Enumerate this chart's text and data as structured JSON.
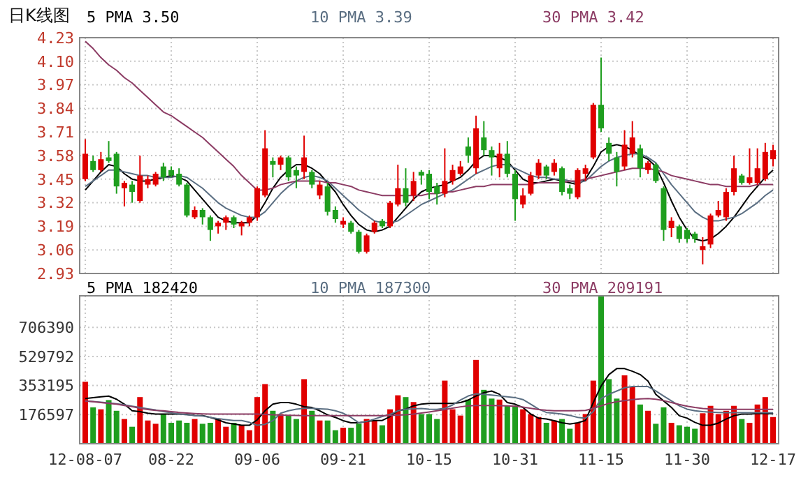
{
  "chart_data": [
    {
      "type": "candlestick",
      "title": "日K线图",
      "legend": "top",
      "grid": true,
      "tick_labels": "y",
      "categories": [
        null,
        null,
        null,
        null,
        null,
        null,
        null,
        null,
        null,
        null,
        null,
        null,
        null,
        null,
        null,
        null,
        null,
        null,
        null,
        null,
        null,
        null,
        null,
        null,
        null,
        null,
        null,
        null,
        null,
        null,
        null,
        null,
        null,
        null,
        null,
        null,
        null,
        null,
        null,
        null,
        null,
        null,
        null,
        null,
        null,
        null,
        null,
        null,
        null,
        null,
        null,
        null,
        null,
        null,
        null,
        null,
        null,
        null,
        null,
        null,
        null,
        null,
        null,
        null,
        null,
        null,
        null,
        null,
        null,
        null,
        null,
        null,
        null,
        null,
        null,
        null,
        null,
        null,
        null,
        null,
        null,
        null,
        null,
        null,
        null,
        null,
        null,
        null,
        null
      ],
      "ylim": [
        2.93,
        4.23
      ],
      "yticks": [
        2.93,
        3.06,
        3.19,
        3.32,
        3.45,
        3.58,
        3.71,
        3.84,
        3.97,
        {
          "value": 4.1,
          "label": "4.10"
        },
        4.23
      ],
      "colors": [
        "#e00000",
        "#1e9e1e",
        "#e00000",
        "#1e9e1e",
        "#1e9e1e",
        "#e00000",
        "#1e9e1e",
        "#e00000",
        "#e00000",
        "#e00000",
        "#1e9e1e",
        "#1e9e1e",
        "#1e9e1e",
        "#1e9e1e",
        "#e00000",
        "#1e9e1e",
        "#1e9e1e",
        "#e00000",
        "#e00000",
        "#1e9e1e",
        "#e00000",
        "#e00000",
        "#e00000",
        "#e00000",
        "#1e9e1e",
        "#e00000",
        "#1e9e1e",
        "#1e9e1e",
        "#e00000",
        "#1e9e1e",
        "#e00000",
        "#1e9e1e",
        "#1e9e1e",
        "#e00000",
        "#1e9e1e",
        "#1e9e1e",
        "#e00000",
        "#e00000",
        "#1e9e1e",
        "#e00000",
        "#e00000",
        "#1e9e1e",
        "#e00000",
        "#1e9e1e",
        "#1e9e1e",
        "#1e9e1e",
        "#e00000",
        "#e00000",
        "#e00000",
        "#1e9e1e",
        "#e00000",
        "#1e9e1e",
        "#1e9e1e",
        "#e00000",
        "#1e9e1e",
        "#1e9e1e",
        "#e00000",
        "#e00000",
        "#e00000",
        "#1e9e1e",
        "#e00000",
        "#1e9e1e",
        "#1e9e1e",
        "#e00000",
        "#e00000",
        "#e00000",
        "#1e9e1e",
        "#1e9e1e",
        "#1e9e1e",
        "#e00000",
        "#e00000",
        "#1e9e1e",
        "#e00000",
        "#1e9e1e",
        "#1e9e1e",
        "#e00000",
        "#1e9e1e",
        "#1e9e1e",
        "#1e9e1e",
        "#e00000",
        "#e00000",
        "#e00000",
        "#e00000",
        "#e00000",
        "#1e9e1e",
        "#e00000",
        "#e00000",
        "#e00000",
        "#e00000"
      ],
      "ohlc": [
        [
          3.45,
          3.67,
          3.44,
          3.59
        ],
        [
          3.55,
          3.58,
          3.49,
          3.5
        ],
        [
          3.5,
          3.6,
          3.49,
          3.56
        ],
        [
          3.57,
          3.66,
          3.54,
          3.55
        ],
        [
          3.59,
          3.6,
          3.37,
          3.41
        ],
        [
          3.4,
          3.44,
          3.3,
          3.43
        ],
        [
          3.42,
          3.44,
          3.32,
          3.38
        ],
        [
          3.33,
          3.58,
          3.32,
          3.47
        ],
        [
          3.42,
          3.47,
          3.4,
          3.45
        ],
        [
          3.42,
          3.49,
          3.41,
          3.48
        ],
        [
          3.52,
          3.54,
          3.44,
          3.46
        ],
        [
          3.5,
          3.52,
          3.46,
          3.47
        ],
        [
          3.48,
          3.51,
          3.41,
          3.42
        ],
        [
          3.42,
          3.43,
          3.24,
          3.25
        ],
        [
          3.24,
          3.3,
          3.23,
          3.28
        ],
        [
          3.28,
          3.29,
          3.2,
          3.24
        ],
        [
          3.24,
          3.25,
          3.11,
          3.17
        ],
        [
          3.19,
          3.22,
          3.15,
          3.21
        ],
        [
          3.21,
          3.25,
          3.17,
          3.24
        ],
        [
          3.24,
          3.25,
          3.18,
          3.2
        ],
        [
          3.19,
          3.22,
          3.14,
          3.21
        ],
        [
          3.21,
          3.25,
          3.19,
          3.24
        ],
        [
          3.24,
          3.41,
          3.22,
          3.4
        ],
        [
          3.36,
          3.72,
          3.35,
          3.62
        ],
        [
          3.55,
          3.57,
          3.46,
          3.53
        ],
        [
          3.53,
          3.58,
          3.5,
          3.57
        ],
        [
          3.57,
          3.58,
          3.44,
          3.46
        ],
        [
          3.5,
          3.52,
          3.4,
          3.47
        ],
        [
          3.49,
          3.69,
          3.45,
          3.57
        ],
        [
          3.49,
          3.5,
          3.4,
          3.42
        ],
        [
          3.36,
          3.44,
          3.34,
          3.42
        ],
        [
          3.41,
          3.43,
          3.25,
          3.27
        ],
        [
          3.28,
          3.3,
          3.21,
          3.23
        ],
        [
          3.2,
          3.24,
          3.18,
          3.22
        ],
        [
          3.21,
          3.22,
          3.15,
          3.16
        ],
        [
          3.16,
          3.17,
          3.04,
          3.05
        ],
        [
          3.05,
          3.15,
          3.04,
          3.14
        ],
        [
          3.16,
          3.22,
          3.15,
          3.21
        ],
        [
          3.22,
          3.23,
          3.18,
          3.19
        ],
        [
          3.19,
          3.33,
          3.18,
          3.32
        ],
        [
          3.31,
          3.53,
          3.3,
          3.4
        ],
        [
          3.4,
          3.51,
          3.3,
          3.32
        ],
        [
          3.36,
          3.49,
          3.33,
          3.44
        ],
        [
          3.49,
          3.5,
          3.42,
          3.47
        ],
        [
          3.48,
          3.5,
          3.34,
          3.38
        ],
        [
          3.41,
          3.43,
          3.31,
          3.37
        ],
        [
          3.37,
          3.62,
          3.35,
          3.44
        ],
        [
          3.44,
          3.53,
          3.42,
          3.5
        ],
        [
          3.48,
          3.55,
          3.47,
          3.52
        ],
        [
          3.63,
          3.68,
          3.54,
          3.58
        ],
        [
          3.51,
          3.8,
          3.48,
          3.73
        ],
        [
          3.68,
          3.77,
          3.58,
          3.61
        ],
        [
          3.61,
          3.63,
          3.47,
          3.57
        ],
        [
          3.51,
          3.65,
          3.46,
          3.59
        ],
        [
          3.59,
          3.66,
          3.46,
          3.48
        ],
        [
          3.48,
          3.5,
          3.22,
          3.34
        ],
        [
          3.31,
          3.4,
          3.29,
          3.36
        ],
        [
          3.37,
          3.49,
          3.36,
          3.47
        ],
        [
          3.47,
          3.56,
          3.45,
          3.54
        ],
        [
          3.52,
          3.53,
          3.45,
          3.47
        ],
        [
          3.49,
          3.56,
          3.47,
          3.54
        ],
        [
          3.51,
          3.52,
          3.36,
          3.38
        ],
        [
          3.4,
          3.42,
          3.34,
          3.37
        ],
        [
          3.35,
          3.51,
          3.34,
          3.5
        ],
        [
          3.48,
          3.53,
          3.44,
          3.51
        ],
        [
          3.57,
          3.87,
          3.56,
          3.86
        ],
        [
          3.86,
          4.12,
          3.71,
          3.73
        ],
        [
          3.65,
          3.68,
          3.55,
          3.59
        ],
        [
          3.57,
          3.6,
          3.41,
          3.49
        ],
        [
          3.52,
          3.72,
          3.5,
          3.64
        ],
        [
          3.59,
          3.77,
          3.57,
          3.68
        ],
        [
          3.62,
          3.64,
          3.46,
          3.51
        ],
        [
          3.5,
          3.55,
          3.48,
          3.54
        ],
        [
          3.53,
          3.54,
          3.43,
          3.44
        ],
        [
          3.4,
          3.41,
          3.11,
          3.17
        ],
        [
          3.18,
          3.24,
          3.13,
          3.22
        ],
        [
          3.19,
          3.2,
          3.1,
          3.12
        ],
        [
          3.17,
          3.18,
          3.1,
          3.12
        ],
        [
          3.15,
          3.16,
          3.1,
          3.12
        ],
        [
          3.06,
          3.13,
          2.98,
          3.08
        ],
        [
          3.09,
          3.26,
          3.07,
          3.25
        ],
        [
          3.25,
          3.33,
          3.24,
          3.28
        ],
        [
          3.24,
          3.4,
          3.22,
          3.38
        ],
        [
          3.38,
          3.58,
          3.36,
          3.51
        ],
        [
          3.47,
          3.48,
          3.42,
          3.43
        ],
        [
          3.43,
          3.62,
          3.42,
          3.46
        ],
        [
          3.43,
          3.62,
          3.42,
          3.51
        ],
        [
          3.45,
          3.65,
          3.44,
          3.6
        ],
        [
          3.56,
          3.64,
          3.52,
          3.61
        ]
      ],
      "series": [
        {
          "type": "line",
          "name": "5 PMA 3.50",
          "color": "#000000",
          "values": [
            3.39,
            3.44,
            3.49,
            3.53,
            3.52,
            3.48,
            3.45,
            3.44,
            3.44,
            3.45,
            3.46,
            3.47,
            3.46,
            3.44,
            3.39,
            3.34,
            3.29,
            3.24,
            3.22,
            3.21,
            3.21,
            3.21,
            3.25,
            3.32,
            3.4,
            3.46,
            3.5,
            3.53,
            3.53,
            3.51,
            3.48,
            3.43,
            3.38,
            3.31,
            3.25,
            3.2,
            3.17,
            3.16,
            3.17,
            3.19,
            3.24,
            3.29,
            3.34,
            3.38,
            3.4,
            3.41,
            3.42,
            3.44,
            3.46,
            3.5,
            3.55,
            3.58,
            3.58,
            3.57,
            3.55,
            3.5,
            3.45,
            3.43,
            3.43,
            3.44,
            3.45,
            3.44,
            3.43,
            3.42,
            3.45,
            3.52,
            3.6,
            3.63,
            3.64,
            3.63,
            3.61,
            3.58,
            3.56,
            3.52,
            3.43,
            3.33,
            3.24,
            3.17,
            3.12,
            3.11,
            3.12,
            3.15,
            3.19,
            3.24,
            3.3,
            3.36,
            3.41,
            3.46,
            3.5
          ]
        },
        {
          "type": "line",
          "name": "10 PMA 3.39",
          "color": "#5a6e82",
          "values": [
            3.41,
            3.44,
            3.47,
            3.5,
            3.5,
            3.49,
            3.48,
            3.47,
            3.47,
            3.46,
            3.46,
            3.46,
            3.47,
            3.46,
            3.43,
            3.4,
            3.36,
            3.32,
            3.29,
            3.27,
            3.25,
            3.24,
            3.24,
            3.27,
            3.32,
            3.37,
            3.41,
            3.44,
            3.46,
            3.47,
            3.46,
            3.44,
            3.4,
            3.36,
            3.32,
            3.28,
            3.25,
            3.22,
            3.21,
            3.21,
            3.22,
            3.25,
            3.28,
            3.31,
            3.33,
            3.35,
            3.37,
            3.39,
            3.42,
            3.45,
            3.48,
            3.5,
            3.52,
            3.53,
            3.53,
            3.51,
            3.49,
            3.47,
            3.46,
            3.46,
            3.45,
            3.45,
            3.44,
            3.43,
            3.44,
            3.48,
            3.52,
            3.55,
            3.57,
            3.58,
            3.59,
            3.59,
            3.57,
            3.54,
            3.48,
            3.42,
            3.37,
            3.32,
            3.27,
            3.24,
            3.22,
            3.22,
            3.23,
            3.24,
            3.26,
            3.29,
            3.32,
            3.36,
            3.39
          ]
        },
        {
          "type": "line",
          "name": "30 PMA 3.42",
          "color": "#8c3c64",
          "values": [
            4.21,
            4.17,
            4.12,
            4.08,
            4.05,
            4.01,
            3.98,
            3.94,
            3.9,
            3.86,
            3.82,
            3.8,
            3.77,
            3.74,
            3.71,
            3.68,
            3.64,
            3.6,
            3.56,
            3.52,
            3.47,
            3.43,
            3.39,
            3.39,
            3.4,
            3.42,
            3.43,
            3.44,
            3.44,
            3.44,
            3.44,
            3.43,
            3.43,
            3.42,
            3.41,
            3.39,
            3.38,
            3.37,
            3.36,
            3.36,
            3.36,
            3.36,
            3.36,
            3.36,
            3.37,
            3.37,
            3.38,
            3.38,
            3.39,
            3.4,
            3.41,
            3.41,
            3.42,
            3.42,
            3.42,
            3.42,
            3.42,
            3.42,
            3.43,
            3.43,
            3.43,
            3.43,
            3.44,
            3.44,
            3.45,
            3.46,
            3.47,
            3.48,
            3.49,
            3.5,
            3.51,
            3.51,
            3.51,
            3.5,
            3.49,
            3.47,
            3.46,
            3.45,
            3.44,
            3.43,
            3.42,
            3.42,
            3.41,
            3.41,
            3.41,
            3.41,
            3.42,
            3.42,
            3.42
          ]
        }
      ]
    },
    {
      "type": "bar",
      "legend": "top",
      "grid": true,
      "categories": [
        "12-08-07",
        null,
        null,
        null,
        null,
        null,
        null,
        null,
        null,
        null,
        null,
        "08-22",
        null,
        null,
        null,
        null,
        null,
        null,
        null,
        null,
        null,
        null,
        "09-06",
        null,
        null,
        null,
        null,
        null,
        null,
        null,
        null,
        null,
        null,
        "09-21",
        null,
        null,
        null,
        null,
        null,
        null,
        null,
        null,
        null,
        null,
        "10-15",
        null,
        null,
        null,
        null,
        null,
        null,
        null,
        null,
        null,
        null,
        "10-31",
        null,
        null,
        null,
        null,
        null,
        null,
        null,
        null,
        null,
        null,
        "11-15",
        null,
        null,
        null,
        null,
        null,
        null,
        null,
        null,
        null,
        null,
        "11-30",
        null,
        null,
        null,
        null,
        null,
        null,
        null,
        null,
        null,
        null,
        "12-17"
      ],
      "ylim": [
        0,
        898000
      ],
      "yticks": [
        176597,
        353195,
        529792,
        706390
      ],
      "series": [
        {
          "type": "bar",
          "colors": [
            "#e00000",
            "#1e9e1e",
            "#e00000",
            "#1e9e1e",
            "#1e9e1e",
            "#e00000",
            "#1e9e1e",
            "#e00000",
            "#e00000",
            "#e00000",
            "#1e9e1e",
            "#1e9e1e",
            "#1e9e1e",
            "#1e9e1e",
            "#e00000",
            "#1e9e1e",
            "#1e9e1e",
            "#e00000",
            "#e00000",
            "#1e9e1e",
            "#e00000",
            "#e00000",
            "#e00000",
            "#e00000",
            "#1e9e1e",
            "#e00000",
            "#1e9e1e",
            "#1e9e1e",
            "#e00000",
            "#1e9e1e",
            "#e00000",
            "#1e9e1e",
            "#1e9e1e",
            "#e00000",
            "#1e9e1e",
            "#1e9e1e",
            "#e00000",
            "#e00000",
            "#1e9e1e",
            "#e00000",
            "#e00000",
            "#1e9e1e",
            "#e00000",
            "#1e9e1e",
            "#1e9e1e",
            "#1e9e1e",
            "#e00000",
            "#e00000",
            "#e00000",
            "#1e9e1e",
            "#e00000",
            "#1e9e1e",
            "#1e9e1e",
            "#e00000",
            "#1e9e1e",
            "#1e9e1e",
            "#e00000",
            "#e00000",
            "#e00000",
            "#1e9e1e",
            "#e00000",
            "#1e9e1e",
            "#1e9e1e",
            "#e00000",
            "#e00000",
            "#e00000",
            "#1e9e1e",
            "#1e9e1e",
            "#1e9e1e",
            "#e00000",
            "#e00000",
            "#1e9e1e",
            "#e00000",
            "#1e9e1e",
            "#1e9e1e",
            "#e00000",
            "#1e9e1e",
            "#1e9e1e",
            "#1e9e1e",
            "#e00000",
            "#e00000",
            "#e00000",
            "#e00000",
            "#e00000",
            "#1e9e1e",
            "#e00000",
            "#e00000",
            "#e00000",
            "#e00000"
          ],
          "values": [
            377000,
            221000,
            209000,
            265000,
            200000,
            150000,
            103000,
            283000,
            141000,
            121000,
            180000,
            127000,
            141000,
            127000,
            150000,
            121000,
            127000,
            150000,
            103000,
            127000,
            112000,
            82000,
            283000,
            362000,
            200000,
            180000,
            171000,
            150000,
            392000,
            200000,
            141000,
            141000,
            82000,
            97000,
            97000,
            121000,
            150000,
            141000,
            112000,
            209000,
            294000,
            283000,
            253000,
            180000,
            180000,
            150000,
            383000,
            209000,
            171000,
            268000,
            509000,
            327000,
            274000,
            268000,
            230000,
            230000,
            209000,
            180000,
            162000,
            127000,
            141000,
            150000,
            91000,
            127000,
            180000,
            383000,
            898000,
            392000,
            274000,
            415000,
            347000,
            238000,
            200000,
            121000,
            221000,
            127000,
            112000,
            103000,
            91000,
            185000,
            230000,
            180000,
            200000,
            230000,
            150000,
            127000,
            238000,
            283000,
            162000
          ]
        },
        {
          "type": "line",
          "name": "5 PMA 182420",
          "color": "#000000",
          "values": [
            274000,
            280000,
            285000,
            289000,
            270000,
            240000,
            200000,
            195000,
            185000,
            180000,
            180000,
            180000,
            180000,
            178000,
            172000,
            171000,
            160000,
            145000,
            127000,
            120000,
            112000,
            112000,
            145000,
            200000,
            240000,
            250000,
            250000,
            240000,
            225000,
            220000,
            200000,
            175000,
            160000,
            140000,
            127000,
            127000,
            135000,
            141000,
            141000,
            165000,
            200000,
            210000,
            230000,
            240000,
            245000,
            245000,
            245000,
            245000,
            250000,
            265000,
            290000,
            310000,
            320000,
            300000,
            250000,
            240000,
            220000,
            180000,
            155000,
            150000,
            140000,
            127000,
            120000,
            127000,
            141000,
            250000,
            350000,
            420000,
            456000,
            456000,
            440000,
            420000,
            380000,
            300000,
            260000,
            220000,
            170000,
            155000,
            130000,
            112000,
            112000,
            125000,
            150000,
            170000,
            180000,
            180000,
            183000,
            183000,
            182000
          ]
        },
        {
          "type": "line",
          "name": "10 PMA 187300",
          "color": "#5a6e82",
          "values": [
            259000,
            256000,
            252000,
            248000,
            243000,
            236000,
            228000,
            220000,
            212000,
            205000,
            195000,
            188000,
            180000,
            176000,
            171000,
            168000,
            160000,
            152000,
            146000,
            141000,
            141000,
            130000,
            112000,
            118000,
            140000,
            185000,
            200000,
            210000,
            215000,
            215000,
            212000,
            210000,
            200000,
            185000,
            160000,
            127000,
            135000,
            150000,
            165000,
            178000,
            200000,
            210000,
            212000,
            214000,
            210000,
            209000,
            215000,
            235000,
            265000,
            290000,
            303000,
            300000,
            295000,
            290000,
            285000,
            280000,
            268000,
            240000,
            210000,
            190000,
            185000,
            180000,
            172000,
            160000,
            155000,
            195000,
            274000,
            300000,
            320000,
            340000,
            347000,
            347000,
            347000,
            320000,
            290000,
            260000,
            230000,
            210000,
            200000,
            195000,
            192000,
            190000,
            188000,
            188000,
            188000,
            188000,
            188000,
            188000,
            187000
          ]
        },
        {
          "type": "line",
          "name": "30 PMA 209191",
          "color": "#8c3c64",
          "values": [
            259000,
            255000,
            250000,
            245000,
            240000,
            232000,
            225000,
            215000,
            208000,
            202000,
            200000,
            195000,
            190000,
            186000,
            183000,
            181000,
            180000,
            180000,
            180000,
            180000,
            180000,
            180000,
            180000,
            178000,
            176000,
            174000,
            173000,
            172000,
            171000,
            171000,
            171000,
            171000,
            171000,
            171000,
            171000,
            171000,
            171000,
            171000,
            171000,
            172000,
            174000,
            176000,
            180000,
            186000,
            193000,
            200000,
            208000,
            216000,
            224000,
            230000,
            232000,
            232000,
            232000,
            231000,
            230000,
            228000,
            222000,
            215000,
            208000,
            203000,
            200000,
            200000,
            200000,
            200000,
            202000,
            215000,
            230000,
            245000,
            255000,
            262000,
            268000,
            272000,
            274000,
            270000,
            262000,
            250000,
            238000,
            228000,
            220000,
            214000,
            211000,
            209000,
            209000,
            209000,
            209000,
            209000,
            209000,
            209000,
            209000
          ]
        }
      ]
    }
  ]
}
